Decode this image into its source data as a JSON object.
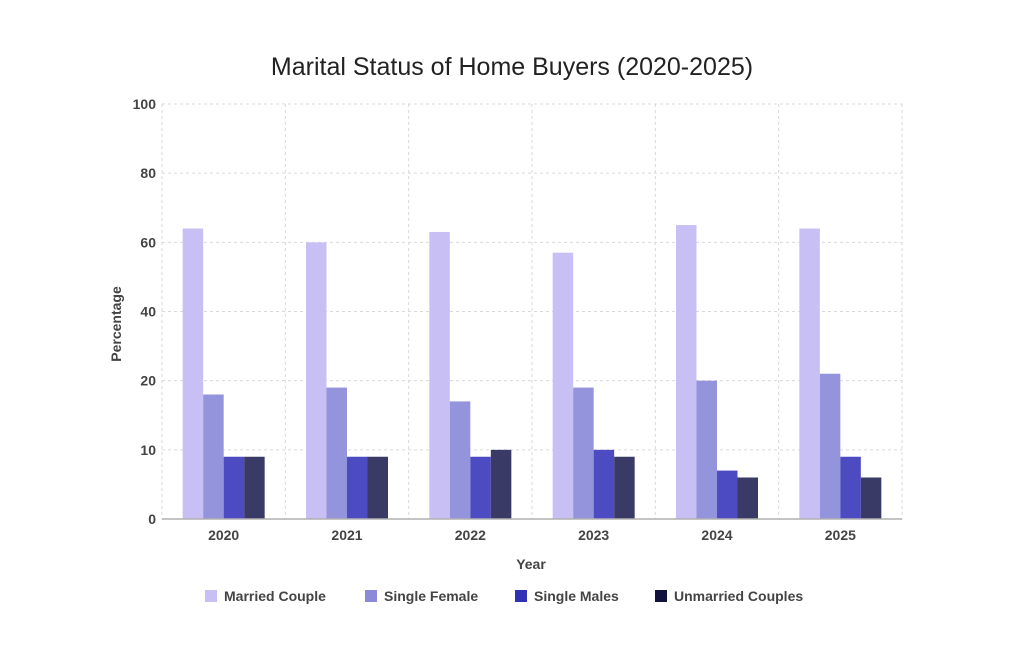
{
  "chart_data": {
    "type": "bar",
    "title": "Marital Status of Home Buyers (2020-2025)",
    "xlabel": "Year",
    "ylabel": "Percentage",
    "categories": [
      "2020",
      "2021",
      "2022",
      "2023",
      "2024",
      "2025"
    ],
    "yticks": [
      "0",
      "10",
      "20",
      "40",
      "60",
      "80",
      "100"
    ],
    "y_axis_note": "tick labels are evenly spaced but read 0, 10, 20, 40, 60, 80, 100",
    "grid": true,
    "legend_position": "bottom",
    "series": [
      {
        "name": "Married Couple",
        "color": "#c8c0f5",
        "values": [
          64,
          60,
          63,
          57,
          65,
          64
        ]
      },
      {
        "name": "Single Female",
        "color": "#9494dc",
        "values": [
          18,
          19,
          17,
          19,
          20,
          22
        ]
      },
      {
        "name": "Single Males",
        "color": "#4d4bc2",
        "values": [
          9,
          9,
          9,
          10,
          7,
          9
        ]
      },
      {
        "name": "Unmarried Couples",
        "color": "#3a3a66",
        "values": [
          9,
          9,
          10,
          9,
          6,
          6
        ]
      }
    ],
    "legend_colors": [
      "#c8c0f5",
      "#8a8ad6",
      "#3131b5",
      "#12123e"
    ]
  }
}
